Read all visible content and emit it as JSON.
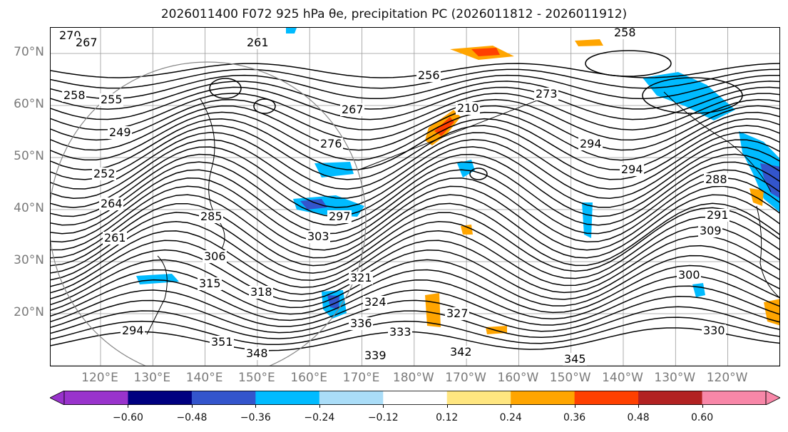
{
  "title": "2026011400 F072 925 hPa θe, precipitation PC (2026011812 - 2026011912)",
  "lat_labels": [
    "70°N",
    "60°N",
    "50°N",
    "40°N",
    "30°N",
    "20°N"
  ],
  "lon_labels": [
    "120°E",
    "130°E",
    "140°E",
    "150°E",
    "160°E",
    "170°E",
    "180°W",
    "170°W",
    "160°W",
    "150°W",
    "140°W",
    "130°W",
    "120°W"
  ],
  "contour_labels": [
    "270",
    "267",
    "261",
    "258",
    "255",
    "258",
    "256",
    "273",
    "210",
    "267",
    "276",
    "285",
    "249",
    "252",
    "264",
    "261",
    "294",
    "294",
    "288",
    "291",
    "303",
    "306",
    "300",
    "309",
    "315",
    "318",
    "321",
    "324",
    "327",
    "330",
    "333",
    "336",
    "339",
    "342",
    "345",
    "348",
    "351",
    "294",
    "297"
  ],
  "colorbar": {
    "ticks": [
      "−0.60",
      "−0.48",
      "−0.36",
      "−0.24",
      "−0.12",
      "0.12",
      "0.24",
      "0.36",
      "0.48",
      "0.60"
    ],
    "colors": [
      "#9933cc",
      "#000080",
      "#3355cc",
      "#00bbff",
      "#aaddf8",
      "#ffffff",
      "#ffe680",
      "#ffa500",
      "#ff4000",
      "#b22222",
      "#f887a8"
    ],
    "under_color": "#9933cc",
    "over_color": "#f887a8"
  }
}
